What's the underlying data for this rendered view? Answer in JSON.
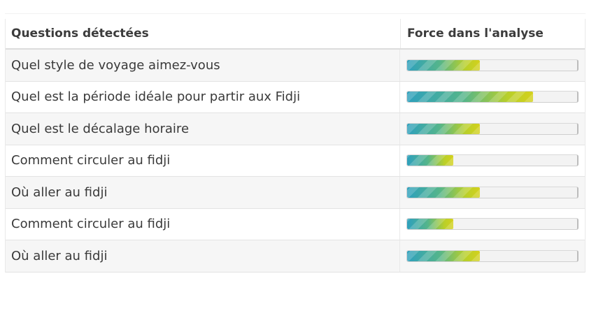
{
  "table": {
    "headers": {
      "question": "Questions détectées",
      "strength": "Force dans l'analyse"
    },
    "rows": [
      {
        "question": "Quel style de voyage aimez-vous",
        "strength": 0.43
      },
      {
        "question": "Quel est la période idéale pour partir aux Fidji",
        "strength": 0.74
      },
      {
        "question": "Quel est le décalage horaire",
        "strength": 0.43
      },
      {
        "question": "Comment circuler au fidji",
        "strength": 0.27
      },
      {
        "question": "Où aller au fidji",
        "strength": 0.43
      },
      {
        "question": "Comment circuler au fidji",
        "strength": 0.27
      },
      {
        "question": "Où aller au fidji",
        "strength": 0.43
      }
    ]
  },
  "colors": {
    "bar_start": "#2ea0bd",
    "bar_mid": "#55b58a",
    "bar_end": "#d4d11c",
    "row_alt": "#f6f6f6"
  }
}
